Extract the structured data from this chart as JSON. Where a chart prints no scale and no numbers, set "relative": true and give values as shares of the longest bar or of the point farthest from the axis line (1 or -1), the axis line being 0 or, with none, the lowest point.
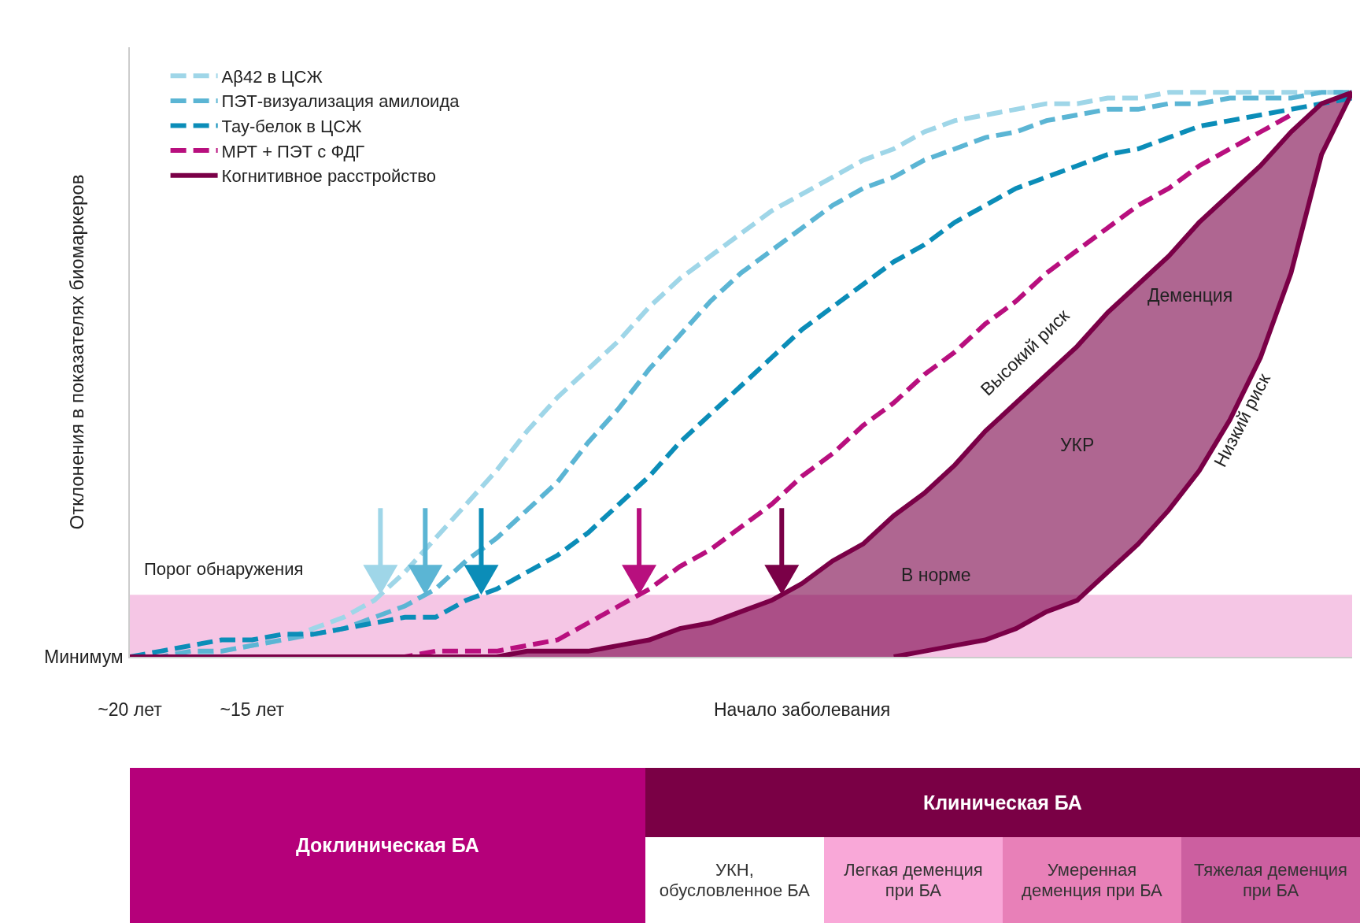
{
  "chart_data": [
    {
      "type": "line",
      "relative": true,
      "ylabel": "Отклонения в показателях биомаркеров",
      "categories": [
        "~20 лет",
        null,
        null,
        null,
        "~15 лет",
        null,
        null,
        null,
        null,
        null,
        null,
        null,
        null,
        null,
        null,
        null,
        null,
        null,
        null,
        null,
        null,
        null,
        "Начало заболевания",
        null,
        null,
        null,
        null,
        null,
        null,
        null,
        null,
        null,
        null,
        null,
        null,
        null,
        null,
        null,
        null,
        null,
        null
      ],
      "legend": "top left",
      "grid": false,
      "bands": [
        {
          "axis": "y",
          "from": 0,
          "to": 0.11,
          "label": "Порог обнаружения",
          "color": "#f5c6e5"
        }
      ],
      "annotations": [
        "Минимум",
        "Деменция",
        "УКР",
        "В норме",
        "Высокий риск",
        "Низкий риск"
      ],
      "series": [
        {
          "name": "Aβ42 в ЦСЖ",
          "color": "#9fd6e8",
          "line_style": "dashed",
          "values": [
            0,
            0,
            0,
            0.01,
            0.02,
            0.03,
            0.05,
            0.07,
            0.1,
            0.15,
            0.21,
            0.27,
            0.33,
            0.4,
            0.46,
            0.51,
            0.56,
            0.62,
            0.67,
            0.71,
            0.75,
            0.79,
            0.82,
            0.85,
            0.88,
            0.9,
            0.93,
            0.95,
            0.96,
            0.97,
            0.98,
            0.98,
            0.99,
            0.99,
            1,
            1,
            1,
            1,
            1,
            1,
            1
          ]
        },
        {
          "name": "ПЭТ-визуализация амилоида",
          "color": "#5bb5d4",
          "line_style": "dashed",
          "values": [
            0,
            0,
            0.01,
            0.01,
            0.02,
            0.03,
            0.04,
            0.05,
            0.07,
            0.09,
            0.12,
            0.17,
            0.21,
            0.26,
            0.31,
            0.38,
            0.44,
            0.51,
            0.57,
            0.63,
            0.68,
            0.72,
            0.76,
            0.8,
            0.83,
            0.85,
            0.88,
            0.9,
            0.92,
            0.93,
            0.95,
            0.96,
            0.97,
            0.97,
            0.98,
            0.98,
            0.99,
            0.99,
            0.99,
            1,
            1
          ]
        },
        {
          "name": "Тау-белок в ЦСЖ",
          "color": "#0b8db8",
          "line_style": "dashed",
          "values": [
            0,
            0.01,
            0.02,
            0.03,
            0.03,
            0.04,
            0.04,
            0.05,
            0.06,
            0.07,
            0.07,
            0.1,
            0.12,
            0.15,
            0.18,
            0.22,
            0.27,
            0.32,
            0.38,
            0.43,
            0.48,
            0.53,
            0.58,
            0.62,
            0.66,
            0.7,
            0.73,
            0.77,
            0.8,
            0.83,
            0.85,
            0.87,
            0.89,
            0.9,
            0.92,
            0.94,
            0.95,
            0.96,
            0.97,
            0.98,
            0.99
          ]
        },
        {
          "name": "МРТ + ПЭТ с ФДГ",
          "color": "#b80f7e",
          "line_style": "dashed",
          "values": [
            null,
            null,
            null,
            null,
            null,
            null,
            null,
            null,
            0,
            0,
            0.01,
            0.01,
            0.01,
            0.02,
            0.03,
            0.06,
            0.09,
            0.12,
            0.16,
            0.19,
            0.23,
            0.27,
            0.32,
            0.36,
            0.41,
            0.45,
            0.5,
            0.54,
            0.59,
            0.63,
            0.68,
            0.72,
            0.76,
            0.8,
            0.83,
            0.87,
            0.9,
            0.93,
            0.96,
            null,
            null
          ]
        },
        {
          "name": "Когнитивное расстройство",
          "color": "#7a0047",
          "line_style": "solid",
          "values": [
            0,
            0,
            0,
            0,
            0,
            0,
            0,
            0,
            0,
            0,
            0,
            0,
            0,
            0.01,
            0.01,
            0.01,
            0.02,
            0.03,
            0.05,
            0.06,
            0.08,
            0.1,
            0.13,
            0.17,
            0.2,
            0.25,
            0.29,
            0.34,
            0.4,
            0.45,
            0.5,
            0.55,
            0.61,
            0.66,
            0.71,
            0.77,
            0.82,
            0.87,
            0.93,
            0.98,
            1
          ],
          "upper": [
            0,
            0,
            0,
            0,
            0,
            0,
            0,
            0,
            0,
            0,
            0,
            0,
            0,
            0.01,
            0.01,
            0.01,
            0.02,
            0.03,
            0.05,
            0.06,
            0.08,
            0.1,
            0.13,
            0.17,
            0.2,
            0.25,
            0.29,
            0.34,
            0.4,
            0.45,
            0.5,
            0.55,
            0.61,
            0.66,
            0.71,
            0.77,
            0.82,
            0.87,
            0.93,
            0.98,
            1
          ],
          "lower": [
            0,
            0,
            0,
            0,
            0,
            0,
            0,
            0,
            0,
            0,
            0,
            0,
            0,
            0,
            0,
            0,
            0,
            0,
            0,
            0,
            0,
            0,
            0,
            0,
            0,
            0,
            0.01,
            0.02,
            0.03,
            0.05,
            0.08,
            0.1,
            0.15,
            0.2,
            0.26,
            0.33,
            0.42,
            0.53,
            0.68,
            0.89,
            1
          ]
        },
        {
          "type": "line",
          "color": "#7a0047",
          "line_style": "solid",
          "values": [
            null,
            null,
            null,
            null,
            null,
            null,
            null,
            null,
            null,
            null,
            null,
            null,
            null,
            null,
            null,
            null,
            null,
            null,
            null,
            null,
            null,
            null,
            null,
            null,
            null,
            0,
            0.01,
            0.02,
            0.03,
            0.05,
            0.08,
            0.1,
            0.15,
            0.2,
            0.26,
            0.33,
            0.42,
            0.53,
            0.68,
            0.89,
            1
          ]
        }
      ]
    },
    {
      "type": "other",
      "annotations": [
        "Доклиническая БА",
        "Клиническая БА",
        "УКН, обусловленное БА",
        "Легкая деменция при БА",
        "Умеренная деменция при БА",
        "Тяжелая деменция при БА"
      ]
    }
  ]
}
